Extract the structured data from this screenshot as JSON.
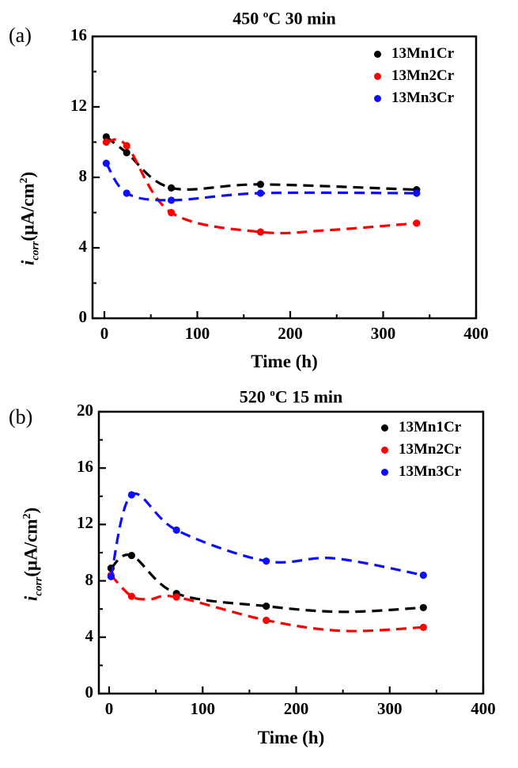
{
  "figure": {
    "description": "Two stacked corrosion-current line charts",
    "text_color": "#000000",
    "background": "#ffffff"
  },
  "chart_data": [
    {
      "type": "line",
      "panel_label": "(a)",
      "title": {
        "pre": "450 ",
        "sup": "o",
        "post": "C 30 min"
      },
      "xlabel": "Time (h)",
      "ylabel": {
        "var": "i",
        "sub": "corr",
        "unit_pre": "(μA/cm",
        "unit_sup": "2",
        "unit_post": ")"
      },
      "xlim": [
        0,
        400
      ],
      "ylim": [
        0,
        16
      ],
      "x_ticks": [
        0,
        100,
        200,
        300,
        400
      ],
      "x_minor_ticks": [
        50,
        150,
        250,
        350
      ],
      "y_ticks": [
        0,
        4,
        8,
        12,
        16
      ],
      "y_minor_ticks": [
        2,
        6,
        10,
        14
      ],
      "grid": false,
      "legend_position": "top-right-inside",
      "line_style": "dashed",
      "series": [
        {
          "name": "13Mn1Cr",
          "color": "#000000",
          "x": [
            2,
            24,
            72,
            168,
            336
          ],
          "y": [
            10.3,
            9.4,
            7.4,
            7.6,
            7.3
          ],
          "curve_extra": []
        },
        {
          "name": "13Mn2Cr",
          "color": "#fe0000",
          "x": [
            2,
            24,
            72,
            168,
            336
          ],
          "y": [
            10.0,
            9.8,
            6.0,
            4.9,
            5.4
          ],
          "curve_extra": [
            [
              240,
              5.0
            ]
          ]
        },
        {
          "name": "13Mn3Cr",
          "color": "#0d0dff",
          "x": [
            2,
            24,
            72,
            168,
            336
          ],
          "y": [
            8.8,
            7.1,
            6.7,
            7.1,
            7.1
          ],
          "curve_extra": []
        }
      ]
    },
    {
      "type": "line",
      "panel_label": "(b)",
      "title": {
        "pre": "520 ",
        "sup": "o",
        "post": "C 15 min"
      },
      "xlabel": "Time (h)",
      "ylabel": {
        "var": "i",
        "sub": "corr",
        "unit_pre": "(μA/cm",
        "unit_sup": "2",
        "unit_post": ")"
      },
      "xlim": [
        0,
        400
      ],
      "ylim": [
        0,
        20
      ],
      "x_ticks": [
        0,
        100,
        200,
        300,
        400
      ],
      "x_minor_ticks": [
        50,
        150,
        250,
        350
      ],
      "y_ticks": [
        0,
        4,
        8,
        12,
        16,
        20
      ],
      "y_minor_ticks": [
        2,
        6,
        10,
        14,
        18
      ],
      "grid": false,
      "legend_position": "top-right-inside",
      "line_style": "dashed",
      "series": [
        {
          "name": "13Mn1Cr",
          "color": "#000000",
          "x": [
            2,
            24,
            72,
            168,
            336
          ],
          "y": [
            8.9,
            9.8,
            7.1,
            6.2,
            6.1
          ],
          "curve_extra": [
            [
              250,
              5.8
            ]
          ]
        },
        {
          "name": "13Mn2Cr",
          "color": "#fe0000",
          "x": [
            2,
            24,
            72,
            168,
            336
          ],
          "y": [
            8.4,
            6.9,
            6.85,
            5.2,
            4.7
          ],
          "curve_extra": [
            [
              44,
              6.7
            ],
            [
              250,
              4.45
            ]
          ]
        },
        {
          "name": "13Mn3Cr",
          "color": "#0d0dff",
          "x": [
            2,
            24,
            72,
            168,
            336
          ],
          "y": [
            8.3,
            14.1,
            11.6,
            9.4,
            8.4
          ],
          "curve_extra": [
            [
              240,
              9.6
            ]
          ]
        }
      ]
    }
  ]
}
